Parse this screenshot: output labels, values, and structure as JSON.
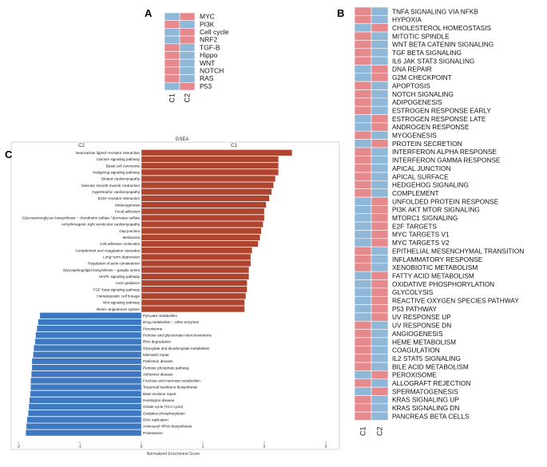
{
  "colors": {
    "red": "#e5898d",
    "blue": "#8fb7d8",
    "bar_pos": "#b0452f",
    "bar_neg": "#3e78c0",
    "line": "#ffffff"
  },
  "chart_data": [
    {
      "panel": "A",
      "type": "heatmap",
      "columns": [
        "C1",
        "C2"
      ],
      "rows": [
        "MYC",
        "PI3K",
        "Cell cycle",
        "NRF2",
        "TGF-B",
        "Hippo",
        "WNT",
        "NOTCH",
        "RAS",
        "P53"
      ],
      "values": [
        [
          0,
          1
        ],
        [
          1,
          0
        ],
        [
          0,
          1
        ],
        [
          0,
          1
        ],
        [
          1,
          0
        ],
        [
          1,
          0
        ],
        [
          1,
          0
        ],
        [
          1,
          0
        ],
        [
          1,
          0
        ],
        [
          0,
          1
        ]
      ],
      "legend": {
        "1": "red",
        "0": "blue"
      }
    },
    {
      "panel": "B",
      "type": "heatmap",
      "columns": [
        "C1",
        "C2"
      ],
      "rows": [
        "TNFA SIGNALING VIA NFKB",
        "HYPOXIA",
        "CHOLESTEROL HOMEOSTASIS",
        "MITOTIC SPINDLE",
        "WNT BETA CATENIN SIGNALING",
        "TGF BETA SIGNALING",
        "IL6 JAK STAT3 SIGNALING",
        "DNA REPAIR",
        "G2M CHECKPOINT",
        "APOPTOSIS",
        "NOTCH SIGNALING",
        "ADIPOGENESIS",
        "ESTROGEN RESPONSE EARLY",
        "ESTROGEN RESPONSE LATE",
        "ANDROGEN RESPONSE",
        "MYOGENESIS",
        "PROTEIN SECRETION",
        "INTERFERON ALPHA RESPONSE",
        "INTERFERON GAMMA RESPONSE",
        "APICAL JUNCTION",
        "APICAL SURFACE",
        "HEDGEHOG SIGNALING",
        "COMPLEMENT",
        "UNFOLDED PROTEIN RESPONSE",
        "PI3K AKT MTOR SIGNALING",
        "MTORC1 SIGNALING",
        "E2F TARGETS",
        "MYC TARGETS V1",
        "MYC TARGETS V2",
        "EPITHELIAL MESENCHYMAL TRANSITION",
        "INFLAMMATORY RESPONSE",
        "XENOBIOTIC METABOLISM",
        "FATTY ACID METABOLISM",
        "OXIDATIVE PHOSPHORYLATION",
        "GLYCOLYSIS",
        "REACTIVE OXYGEN SPECIES PATHWAY",
        "P53 PATHWAY",
        "UV RESPONSE UP",
        "UV RESPONSE DN",
        "ANGIOGENESIS",
        "HEME METABOLISM",
        "COAGULATION",
        "IL2 STAT5 SIGNALING",
        "BILE ACID METABOLISM",
        "PEROXISOME",
        "ALLOGRAFT REJECTION",
        "SPERMATOGENESIS",
        "KRAS SIGNALING UP",
        "KRAS SIGNALING DN",
        "PANCREAS BETA CELLS"
      ],
      "values": [
        [
          1,
          0
        ],
        [
          1,
          0
        ],
        [
          0,
          1
        ],
        [
          1,
          0
        ],
        [
          1,
          0
        ],
        [
          1,
          0
        ],
        [
          1,
          0
        ],
        [
          0,
          1
        ],
        [
          0,
          1
        ],
        [
          1,
          0
        ],
        [
          1,
          0
        ],
        [
          1,
          0
        ],
        [
          1,
          0
        ],
        [
          0,
          1
        ],
        [
          0,
          1
        ],
        [
          1,
          0
        ],
        [
          0,
          1
        ],
        [
          1,
          0
        ],
        [
          1,
          0
        ],
        [
          1,
          0
        ],
        [
          1,
          0
        ],
        [
          1,
          0
        ],
        [
          1,
          0
        ],
        [
          0,
          1
        ],
        [
          0,
          1
        ],
        [
          0,
          1
        ],
        [
          0,
          1
        ],
        [
          0,
          1
        ],
        [
          0,
          1
        ],
        [
          1,
          0
        ],
        [
          1,
          0
        ],
        [
          1,
          0
        ],
        [
          0,
          1
        ],
        [
          0,
          1
        ],
        [
          0,
          1
        ],
        [
          0,
          1
        ],
        [
          0,
          1
        ],
        [
          0,
          1
        ],
        [
          1,
          0
        ],
        [
          1,
          0
        ],
        [
          1,
          0
        ],
        [
          1,
          0
        ],
        [
          1,
          0
        ],
        [
          1,
          0
        ],
        [
          0,
          1
        ],
        [
          1,
          0
        ],
        [
          0,
          1
        ],
        [
          1,
          0
        ],
        [
          1,
          0
        ],
        [
          1,
          0
        ]
      ],
      "legend": {
        "1": "red",
        "0": "blue"
      }
    },
    {
      "panel": "C",
      "type": "bar",
      "orientation": "horizontal",
      "title": "GSEA",
      "group_labels": {
        "negative": "C2",
        "positive": "C1"
      },
      "xlabel": "Normalized Enrichment Score",
      "xlim": [
        -2.25,
        3.25
      ],
      "xticks": [
        -2,
        -1,
        0,
        1,
        2,
        3
      ],
      "categories": [
        "Neuroactive ligand−receptor interaction",
        "Calcium signaling pathway",
        "Basal cell carcinoma",
        "Hedgehog signaling pathway",
        "Dilated cardiomyopathy",
        "Vascular smooth muscle contraction",
        "Hypertrophic cardiomyopathy",
        "ECM−receptor interaction",
        "Melanogenesis",
        "Focal adhesion",
        "Glycosaminoglycan biosynthesis − chondroitin sulfate / dermatan sulfate",
        "Arrhythmogenic right ventricular cardiomyopathy",
        "Gap junction",
        "Melanoma",
        "Cell adhesion molecules",
        "Complement and coagulation cascades",
        "Long−term depression",
        "Regulation of actin cytoskeleton",
        "Glycosphingolipid biosynthesis − ganglio series",
        "MAPK signaling pathway",
        "Axon guidance",
        "TGF−beta signaling pathway",
        "Hematopoietic cell lineage",
        "Wnt signaling pathway",
        "Renin−angiotensin system",
        "Pyruvate metabolism",
        "Drug metabolism − other enzymes",
        "Peroxisome",
        "Pentose and glucuronate interconversions",
        "RNA degradation",
        "Glyoxylate and dicarboxylate metabolism",
        "Mismatch repair",
        "Parkinson disease",
        "Pentose phosphate pathway",
        "Alzheimer disease",
        "Fructose and mannose metabolism",
        "Terpenoid backbone biosynthesis",
        "Base excision repair",
        "Huntington disease",
        "Citrate cycle (TCA cycle)",
        "Oxidative phosphorylation",
        "DNA replication",
        "Aminoacyl−tRNA biosynthesis",
        "Proteasome"
      ],
      "values": [
        2.45,
        2.23,
        2.23,
        2.23,
        2.18,
        2.15,
        2.12,
        2.08,
        2.03,
        2.0,
        2.0,
        1.98,
        1.95,
        1.93,
        1.9,
        1.8,
        1.78,
        1.78,
        1.75,
        1.75,
        1.72,
        1.72,
        1.7,
        1.68,
        1.68,
        -1.65,
        -1.68,
        -1.7,
        -1.72,
        -1.73,
        -1.75,
        -1.76,
        -1.78,
        -1.78,
        -1.79,
        -1.8,
        -1.8,
        -1.81,
        -1.82,
        -1.83,
        -1.84,
        -1.86,
        -1.87,
        -1.88
      ]
    }
  ]
}
